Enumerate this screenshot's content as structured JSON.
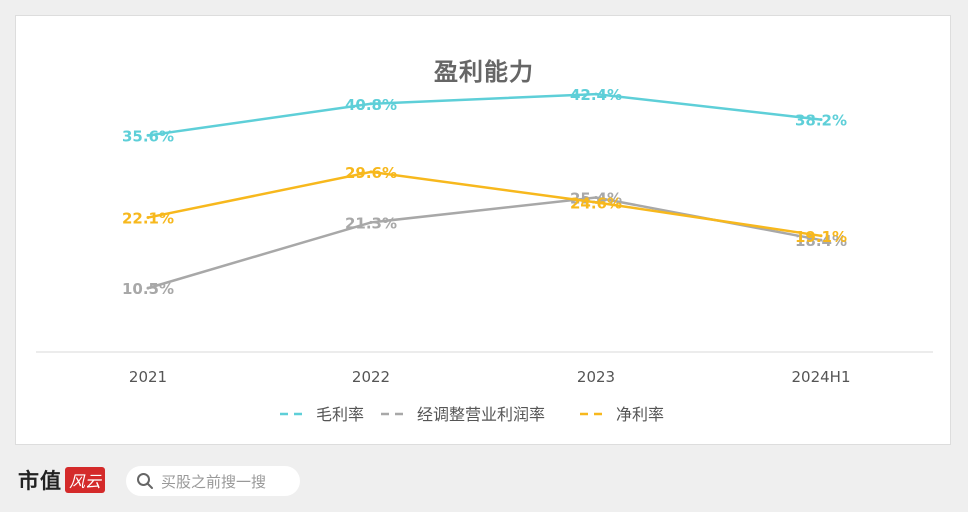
{
  "chart_data": {
    "type": "line",
    "title": "盈利能力",
    "categories": [
      "2021",
      "2022",
      "2023",
      "2024H1"
    ],
    "series": [
      {
        "name": "毛利率",
        "values": [
          35.6,
          40.8,
          42.4,
          38.2
        ],
        "labels": [
          "35.6%",
          "40.8%",
          "42.4%",
          "38.2%"
        ],
        "color": "#5ecfd8",
        "dash": true
      },
      {
        "name": "经调整营业利润率",
        "values": [
          10.5,
          21.3,
          25.4,
          18.4
        ],
        "labels": [
          "10.5%",
          "21.3%",
          "25.4%",
          "18.4%"
        ],
        "color": "#a8a8a8",
        "dash": true
      },
      {
        "name": "净利率",
        "values": [
          22.1,
          29.6,
          24.6,
          19.1
        ],
        "labels": [
          "22.1%",
          "29.6%",
          "24.6%",
          "19.1%"
        ],
        "color": "#f7b81d",
        "dash": true
      }
    ],
    "ylim": [
      0,
      48
    ],
    "grid": false,
    "legend_position": "bottom"
  },
  "footer": {
    "logo_text": "市值",
    "logo_badge": "风云",
    "search_placeholder": "买股之前搜一搜"
  },
  "colors": {
    "background": "#efefef",
    "card": "#ffffff",
    "axis": "#d9d9d9",
    "tick_text": "#555555"
  }
}
